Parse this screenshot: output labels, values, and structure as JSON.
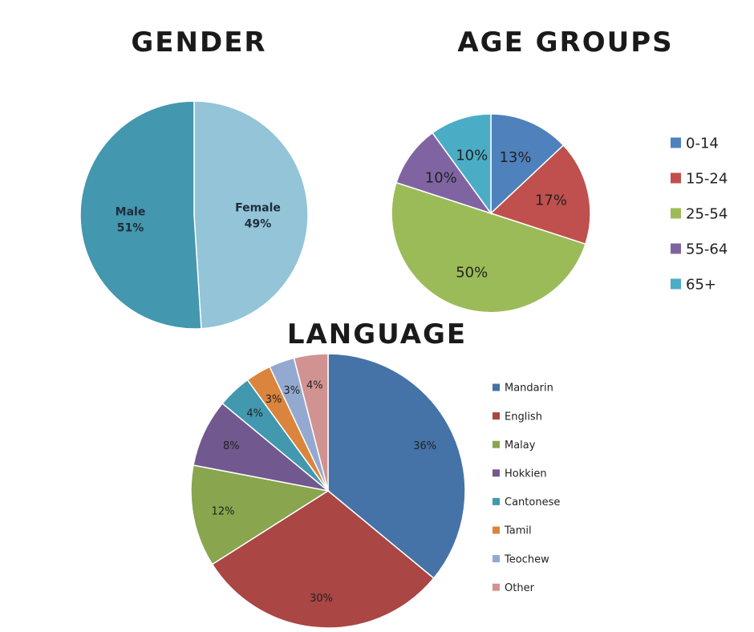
{
  "chart_data": [
    {
      "type": "pie",
      "title": "GENDER",
      "categories": [
        "Female",
        "Male"
      ],
      "values": [
        49,
        51
      ],
      "labels": [
        "49%",
        "51%"
      ],
      "colors": [
        "#93c4d8",
        "#4397af"
      ],
      "legend": "none"
    },
    {
      "type": "pie",
      "title": "AGE GROUPS",
      "categories": [
        "0-14",
        "15-24",
        "25-54",
        "55-64",
        "65+"
      ],
      "values": [
        13,
        17,
        50,
        10,
        10
      ],
      "labels": [
        "13%",
        "17%",
        "50%",
        "10%",
        "10%"
      ],
      "colors": [
        "#4f81bd",
        "#c0504d",
        "#9bbb59",
        "#8064a2",
        "#4bacc6"
      ],
      "legend": "right"
    },
    {
      "type": "pie",
      "title": "LANGUAGE",
      "categories": [
        "Mandarin",
        "English",
        "Malay",
        "Hokkien",
        "Cantonese",
        "Tamil",
        "Teochew",
        "Other"
      ],
      "values": [
        36,
        30,
        12,
        8,
        4,
        3,
        3,
        4
      ],
      "labels": [
        "36%",
        "30%",
        "12%",
        "8%",
        "4%",
        "3%",
        "3%",
        "4%"
      ],
      "colors": [
        "#4572a7",
        "#aa4643",
        "#89a54e",
        "#71588f",
        "#4198af",
        "#db843d",
        "#93a9cf",
        "#d19392"
      ],
      "legend": "right"
    }
  ]
}
